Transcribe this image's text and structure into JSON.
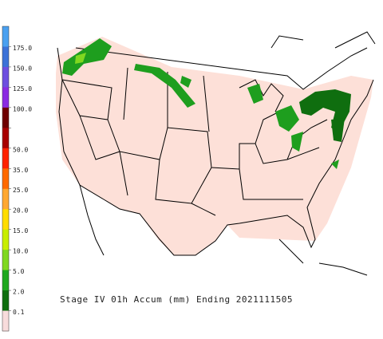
{
  "title": "Stage IV 01h Accum (mm) Ending 2021111505",
  "legend": {
    "colors": [
      "#4aa0f0",
      "#3c72d8",
      "#6d4fe0",
      "#8a2be2",
      "#6e0000",
      "#a80000",
      "#ff2200",
      "#ff6a00",
      "#ffa830",
      "#ffdd00",
      "#c8ee00",
      "#80d820",
      "#1fa81f",
      "#0f6e0f",
      "#f8dcdc"
    ],
    "labels": [
      "175.0",
      "150.0",
      "125.0",
      "100.0",
      null,
      "50.0",
      "35.0",
      "25.0",
      "20.0",
      "15.0",
      "10.0",
      "5.0",
      "2.0",
      "0.1"
    ]
  }
}
